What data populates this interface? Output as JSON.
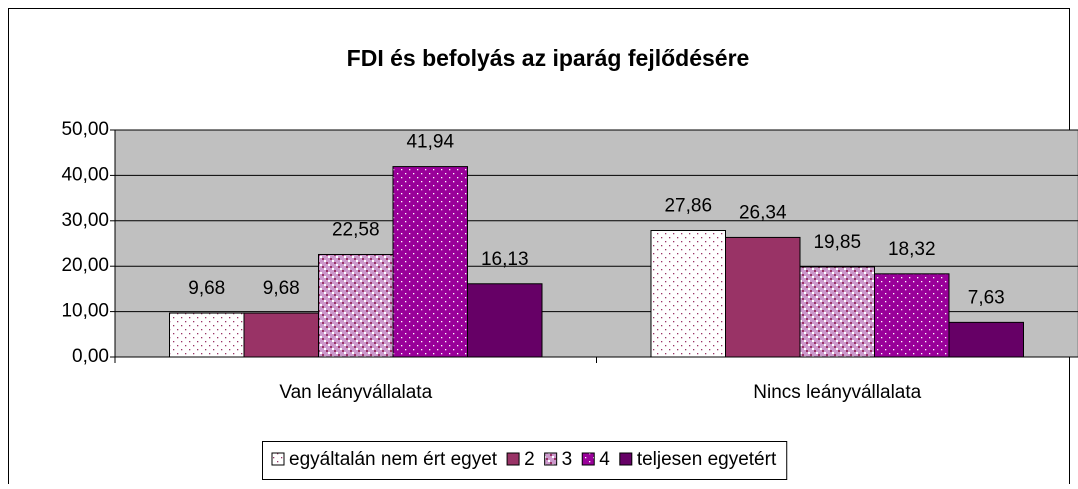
{
  "chart_data": {
    "type": "bar",
    "title": "FDI és befolyás az iparág fejlődésére",
    "categories": [
      "Van leányvállalata",
      "Nincs leányvállalata"
    ],
    "series": [
      {
        "name": "egyáltalán nem ért egyet",
        "color": "#ffffff",
        "pattern": "dots",
        "values": [
          9.68,
          27.86
        ],
        "value_labels": [
          "9,68",
          "27,86"
        ]
      },
      {
        "name": "2",
        "color": "#993366",
        "pattern": "solid",
        "values": [
          9.68,
          26.34
        ],
        "value_labels": [
          "9,68",
          "26,34"
        ]
      },
      {
        "name": "3",
        "color": "#cc99cc",
        "pattern": "checks",
        "values": [
          22.58,
          19.85
        ],
        "value_labels": [
          "22,58",
          "19,85"
        ]
      },
      {
        "name": "4",
        "color": "#990099",
        "pattern": "dots",
        "values": [
          41.94,
          18.32
        ],
        "value_labels": [
          "41,94",
          "18,32"
        ]
      },
      {
        "name": "teljesen egyetért",
        "color": "#660066",
        "pattern": "solid",
        "values": [
          16.13,
          7.63
        ],
        "value_labels": [
          "16,13",
          "7,63"
        ]
      }
    ],
    "ylim": [
      0,
      50
    ],
    "yticks": [
      {
        "value": 0,
        "label": "0,00"
      },
      {
        "value": 10,
        "label": "10,00"
      },
      {
        "value": 20,
        "label": "20,00"
      },
      {
        "value": 30,
        "label": "30,00"
      },
      {
        "value": 40,
        "label": "40,00"
      },
      {
        "value": 50,
        "label": "50,00"
      }
    ],
    "grid": true,
    "plot_background": "#c0c0c0",
    "legend": "bottom"
  }
}
